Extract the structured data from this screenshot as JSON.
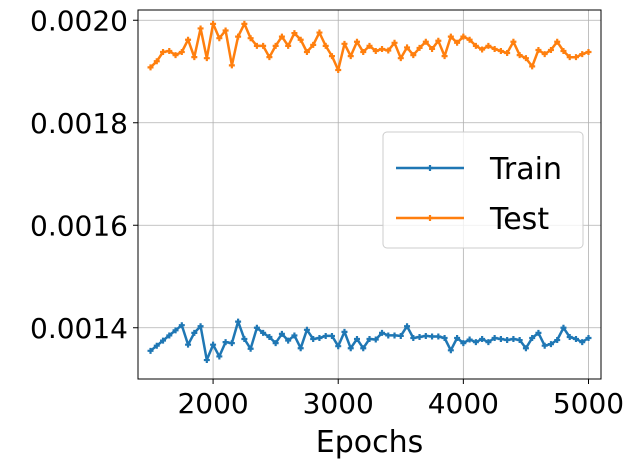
{
  "chart_data": {
    "type": "line",
    "title": "",
    "xlabel": "Epochs",
    "ylabel": "",
    "xlim": [
      1400,
      5100
    ],
    "ylim": [
      0.0013,
      0.00202
    ],
    "xticks": [
      2000,
      3000,
      4000,
      5000
    ],
    "xtick_labels": [
      "2000",
      "3000",
      "4000",
      "5000"
    ],
    "yticks": [
      0.0014,
      0.0016,
      0.0018,
      0.002
    ],
    "ytick_labels": [
      "0.0014",
      "0.0016",
      "0.0018",
      "0.0020"
    ],
    "grid": true,
    "legend_position": "center-right",
    "x": [
      1500,
      1550,
      1600,
      1650,
      1700,
      1750,
      1800,
      1850,
      1900,
      1950,
      2000,
      2050,
      2100,
      2150,
      2200,
      2250,
      2300,
      2350,
      2400,
      2450,
      2500,
      2550,
      2600,
      2650,
      2700,
      2750,
      2800,
      2850,
      2900,
      2950,
      3000,
      3050,
      3100,
      3150,
      3200,
      3250,
      3300,
      3350,
      3400,
      3450,
      3500,
      3550,
      3600,
      3650,
      3700,
      3750,
      3800,
      3850,
      3900,
      3950,
      4000,
      4050,
      4100,
      4150,
      4200,
      4250,
      4300,
      4350,
      4400,
      4450,
      4500,
      4550,
      4600,
      4650,
      4700,
      4750,
      4800,
      4850,
      4900,
      4950,
      5000
    ],
    "series": [
      {
        "name": "Train",
        "color": "#1f77b4",
        "values": [
          0.001355,
          0.001365,
          0.001375,
          0.001385,
          0.001395,
          0.001405,
          0.001367,
          0.00139,
          0.001403,
          0.001337,
          0.001367,
          0.001344,
          0.001372,
          0.00137,
          0.001412,
          0.001378,
          0.001359,
          0.0014,
          0.00139,
          0.001382,
          0.00137,
          0.001388,
          0.001375,
          0.001385,
          0.00136,
          0.001396,
          0.001378,
          0.00138,
          0.001384,
          0.001384,
          0.001364,
          0.001392,
          0.00136,
          0.001378,
          0.00136,
          0.001378,
          0.001377,
          0.00139,
          0.001385,
          0.001385,
          0.001384,
          0.001403,
          0.00138,
          0.001382,
          0.001384,
          0.001383,
          0.001383,
          0.00138,
          0.001356,
          0.00138,
          0.00137,
          0.001377,
          0.001372,
          0.001378,
          0.001372,
          0.00138,
          0.001378,
          0.001376,
          0.001378,
          0.001376,
          0.00136,
          0.00138,
          0.00139,
          0.001365,
          0.001368,
          0.001376,
          0.0014,
          0.001382,
          0.001378,
          0.001372,
          0.00138
        ]
      },
      {
        "name": "Test",
        "color": "#ff7f0e",
        "values": [
          0.001908,
          0.00192,
          0.001938,
          0.00194,
          0.001932,
          0.001938,
          0.001962,
          0.001928,
          0.001984,
          0.001926,
          0.001993,
          0.001965,
          0.00198,
          0.001912,
          0.001968,
          0.001993,
          0.001965,
          0.00195,
          0.00195,
          0.001928,
          0.00195,
          0.001968,
          0.00195,
          0.001975,
          0.001962,
          0.001938,
          0.001952,
          0.001976,
          0.00195,
          0.00193,
          0.001903,
          0.001954,
          0.00193,
          0.001958,
          0.001938,
          0.00195,
          0.00194,
          0.001944,
          0.001941,
          0.001956,
          0.001926,
          0.001947,
          0.001932,
          0.001946,
          0.001958,
          0.001944,
          0.00196,
          0.00193,
          0.001968,
          0.001956,
          0.001968,
          0.001962,
          0.00195,
          0.001943,
          0.00195,
          0.001944,
          0.00194,
          0.001936,
          0.001958,
          0.001932,
          0.001926,
          0.00191,
          0.001942,
          0.001934,
          0.001942,
          0.001958,
          0.00194,
          0.001928,
          0.001928,
          0.001934,
          0.001938
        ]
      }
    ]
  }
}
